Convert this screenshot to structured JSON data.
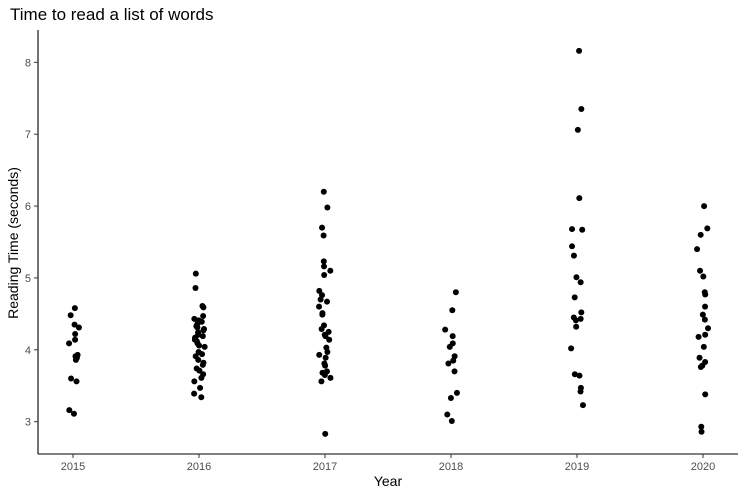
{
  "chart_data": {
    "type": "scatter",
    "title": "Time to read a list of words",
    "xlabel": "Year",
    "ylabel": "Reading Time (seconds)",
    "categories": [
      "2015",
      "2016",
      "2017",
      "2018",
      "2019",
      "2020"
    ],
    "y_ticks": [
      3,
      4,
      5,
      6,
      7,
      8
    ],
    "ylim": [
      2.55,
      8.45
    ],
    "grid": false,
    "point_color": "#000000",
    "groups": [
      {
        "x": "2015",
        "y": [
          4.58,
          4.48,
          4.35,
          4.31,
          4.22,
          4.14,
          4.09,
          3.93,
          3.91,
          3.89,
          3.86,
          3.6,
          3.56,
          3.16,
          3.11
        ]
      },
      {
        "x": "2016",
        "y": [
          5.06,
          4.86,
          4.61,
          4.59,
          4.47,
          4.43,
          4.41,
          4.39,
          4.36,
          4.33,
          4.31,
          4.29,
          4.27,
          4.24,
          4.21,
          4.19,
          4.17,
          4.14,
          4.12,
          4.09,
          4.06,
          4.04,
          3.97,
          3.94,
          3.91,
          3.86,
          3.82,
          3.79,
          3.74,
          3.71,
          3.66,
          3.61,
          3.56,
          3.47,
          3.39,
          3.34
        ]
      },
      {
        "x": "2017",
        "y": [
          6.2,
          5.98,
          5.7,
          5.59,
          5.23,
          5.16,
          5.1,
          5.04,
          4.82,
          4.76,
          4.7,
          4.67,
          4.6,
          4.51,
          4.49,
          4.34,
          4.29,
          4.25,
          4.21,
          4.19,
          4.14,
          4.03,
          3.97,
          3.93,
          3.89,
          3.81,
          3.78,
          3.7,
          3.68,
          3.65,
          3.61,
          3.56,
          2.83
        ]
      },
      {
        "x": "2018",
        "y": [
          4.8,
          4.55,
          4.28,
          4.19,
          4.09,
          4.04,
          3.91,
          3.85,
          3.81,
          3.7,
          3.4,
          3.33,
          3.1,
          3.01
        ]
      },
      {
        "x": "2019",
        "y": [
          8.16,
          7.35,
          7.06,
          6.11,
          5.68,
          5.67,
          5.44,
          5.31,
          5.01,
          4.94,
          4.73,
          4.52,
          4.45,
          4.43,
          4.41,
          4.32,
          4.02,
          3.66,
          3.64,
          3.47,
          3.42,
          3.23
        ]
      },
      {
        "x": "2020",
        "y": [
          6.0,
          5.69,
          5.6,
          5.4,
          5.1,
          5.02,
          4.8,
          4.77,
          4.6,
          4.49,
          4.42,
          4.3,
          4.21,
          4.18,
          4.04,
          3.89,
          3.83,
          3.78,
          3.76,
          3.38,
          2.93,
          2.86
        ]
      }
    ]
  }
}
